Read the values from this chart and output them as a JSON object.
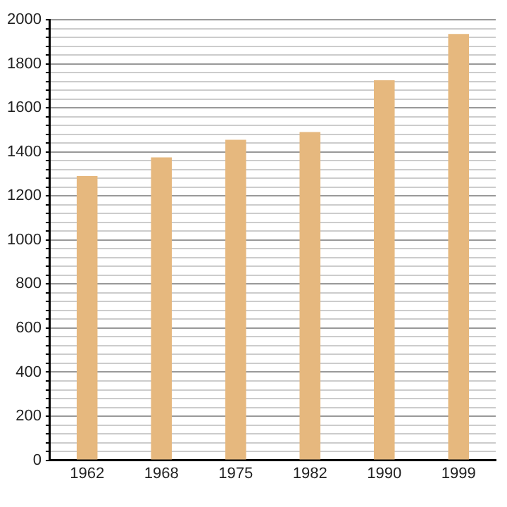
{
  "chart_data": {
    "type": "bar",
    "categories": [
      "1962",
      "1968",
      "1975",
      "1982",
      "1990",
      "1999"
    ],
    "values": [
      1290,
      1375,
      1455,
      1490,
      1725,
      1935
    ],
    "color": "#e6b87e",
    "ylim": [
      0,
      2000
    ],
    "yticks": [
      0,
      {
        "value": 40,
        "label": null
      },
      {
        "value": 80,
        "label": null
      },
      {
        "value": 120,
        "label": null
      },
      {
        "value": 160,
        "label": null
      },
      200,
      {
        "value": 240,
        "label": null
      },
      {
        "value": 280,
        "label": null
      },
      {
        "value": 320,
        "label": null
      },
      {
        "value": 360,
        "label": null
      },
      400,
      {
        "value": 440,
        "label": null
      },
      {
        "value": 480,
        "label": null
      },
      {
        "value": 520,
        "label": null
      },
      {
        "value": 560,
        "label": null
      },
      600,
      {
        "value": 640,
        "label": null
      },
      {
        "value": 680,
        "label": null
      },
      {
        "value": 720,
        "label": null
      },
      {
        "value": 760,
        "label": null
      },
      800,
      {
        "value": 840,
        "label": null
      },
      {
        "value": 880,
        "label": null
      },
      {
        "value": 920,
        "label": null
      },
      {
        "value": 960,
        "label": null
      },
      1000,
      {
        "value": 1040,
        "label": null
      },
      {
        "value": 1080,
        "label": null
      },
      {
        "value": 1120,
        "label": null
      },
      {
        "value": 1160,
        "label": null
      },
      1200,
      {
        "value": 1240,
        "label": null
      },
      {
        "value": 1280,
        "label": null
      },
      {
        "value": 1320,
        "label": null
      },
      {
        "value": 1360,
        "label": null
      },
      1400,
      {
        "value": 1440,
        "label": null
      },
      {
        "value": 1480,
        "label": null
      },
      {
        "value": 1520,
        "label": null
      },
      {
        "value": 1560,
        "label": null
      },
      1600,
      {
        "value": 1640,
        "label": null
      },
      {
        "value": 1680,
        "label": null
      },
      {
        "value": 1720,
        "label": null
      },
      {
        "value": 1760,
        "label": null
      },
      1800,
      {
        "value": 1840,
        "label": null
      },
      {
        "value": 1880,
        "label": null
      },
      {
        "value": 1920,
        "label": null
      },
      {
        "value": 1960,
        "label": null
      },
      2000
    ],
    "grid": "y",
    "legend": false
  }
}
